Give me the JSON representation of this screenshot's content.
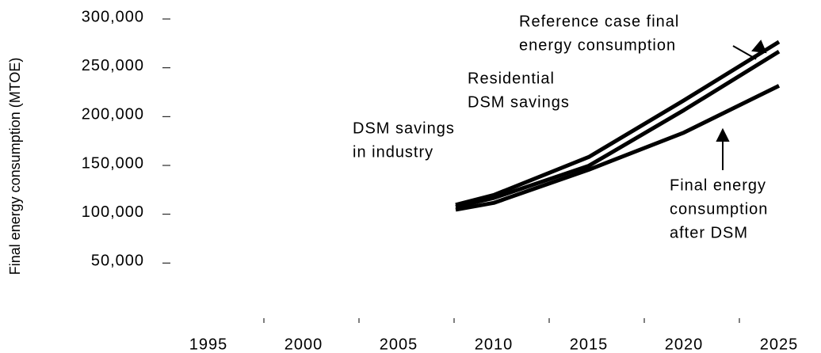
{
  "chart_data": {
    "type": "line",
    "y_label": "Final energy consumption (MTOE)",
    "x": [
      2008,
      2010,
      2015,
      2020,
      2025
    ],
    "series": [
      {
        "name": "Reference case final energy consumption",
        "color": "#000000",
        "values": [
          108000,
          118000,
          157000,
          215000,
          275000
        ]
      },
      {
        "name": "Residential DSM savings",
        "color": "#000000",
        "values": [
          106000,
          115000,
          148000,
          205000,
          265000
        ]
      },
      {
        "name": "Final energy consumption after DSM",
        "color": "#000000",
        "values": [
          103000,
          110000,
          144000,
          182000,
          230000
        ]
      }
    ],
    "annotations": [
      {
        "lines": [
          "Reference case final",
          "energy consumption"
        ]
      },
      {
        "lines": [
          "Residential",
          "DSM savings"
        ]
      },
      {
        "lines": [
          "DSM savings",
          "in industry"
        ]
      },
      {
        "lines": [
          "Final energy",
          "consumption",
          "after DSM"
        ]
      }
    ],
    "xlim": [
      1990,
      2027
    ],
    "xticks": [
      1995,
      2000,
      2005,
      2010,
      2015,
      2020,
      2025
    ],
    "ylim": [
      0,
      300000
    ],
    "yticks": [
      {
        "value": 50000,
        "label": "50,000"
      },
      {
        "value": 100000,
        "label": "100,000"
      },
      {
        "value": 150000,
        "label": "150,000"
      },
      {
        "value": 200000,
        "label": "200,000"
      },
      {
        "value": 250000,
        "label": "250,000"
      },
      {
        "value": 300000,
        "label": "300,000"
      }
    ],
    "grid": false
  }
}
